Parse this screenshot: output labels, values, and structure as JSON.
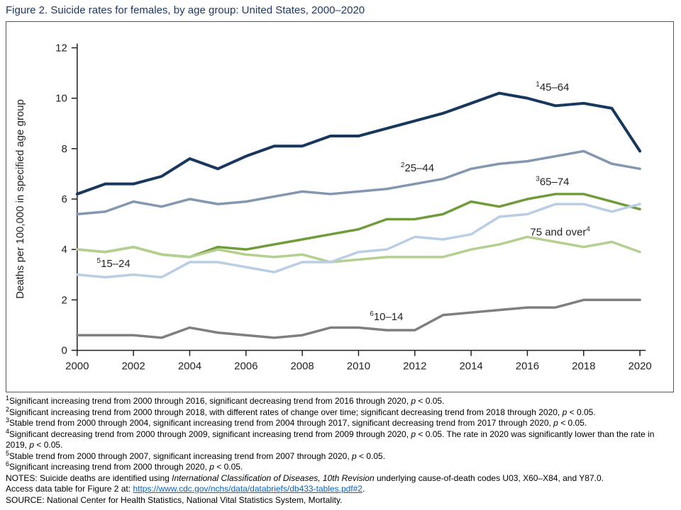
{
  "figure": {
    "title": "Figure 2. Suicide rates for females, by age group: United States, 2000–2020"
  },
  "chart_data": {
    "type": "line",
    "title": "Figure 2. Suicide rates for females, by age group: United States, 2000–2020",
    "xlabel": "",
    "ylabel": "Deaths per 100,000 in specified age group",
    "xlim": [
      2000,
      2020
    ],
    "ylim": [
      0,
      12
    ],
    "yticks": [
      0,
      2,
      4,
      6,
      8,
      10,
      12
    ],
    "xticks": [
      2000,
      2002,
      2004,
      2006,
      2008,
      2010,
      2012,
      2014,
      2016,
      2018,
      2020
    ],
    "grid": false,
    "legend_position": "inline-labels",
    "axis_color": "#231f20",
    "x": [
      2000,
      2001,
      2002,
      2003,
      2004,
      2005,
      2006,
      2007,
      2008,
      2009,
      2010,
      2011,
      2012,
      2013,
      2014,
      2015,
      2016,
      2017,
      2018,
      2019,
      2020
    ],
    "series": [
      {
        "id": "45-64",
        "name": "45–64",
        "footnote": "1",
        "color": "#17375e",
        "line_width": 4,
        "values": [
          6.2,
          6.6,
          6.6,
          6.9,
          7.6,
          7.2,
          7.7,
          8.1,
          8.1,
          8.5,
          8.5,
          8.8,
          9.1,
          9.4,
          9.8,
          10.2,
          10.0,
          9.7,
          9.8,
          9.6,
          7.9
        ],
        "label": {
          "text": "45–64",
          "sup": "1",
          "sup_side": "before",
          "x": 2016.3,
          "y": 10.3
        }
      },
      {
        "id": "25-44",
        "name": "25–44",
        "footnote": "2",
        "color": "#8497b0",
        "line_width": 3.5,
        "values": [
          5.4,
          5.5,
          5.9,
          5.7,
          6.0,
          5.8,
          5.9,
          6.1,
          6.3,
          6.2,
          6.3,
          6.4,
          6.6,
          6.8,
          7.2,
          7.4,
          7.5,
          7.7,
          7.9,
          7.4,
          7.2
        ],
        "label": {
          "text": "25–44",
          "sup": "2",
          "sup_side": "before",
          "x": 2011.5,
          "y": 7.1
        }
      },
      {
        "id": "65-74",
        "name": "65–74",
        "footnote": "3",
        "color": "#6f9c3a",
        "line_width": 3.5,
        "values": [
          4.0,
          3.9,
          4.1,
          3.8,
          3.7,
          4.1,
          4.0,
          4.2,
          4.4,
          4.6,
          4.8,
          5.2,
          5.2,
          5.4,
          5.9,
          5.7,
          6.0,
          6.2,
          6.2,
          5.9,
          5.6
        ],
        "label": {
          "text": "65–74",
          "sup": "3",
          "sup_side": "before",
          "x": 2016.3,
          "y": 6.55
        }
      },
      {
        "id": "75-over",
        "name": "75 and over",
        "footnote": "4",
        "color": "#b5cf8e",
        "line_width": 3.5,
        "values": [
          4.0,
          3.9,
          4.1,
          3.8,
          3.7,
          4.0,
          3.8,
          3.7,
          3.8,
          3.5,
          3.6,
          3.7,
          3.7,
          3.7,
          4.0,
          4.2,
          4.5,
          4.3,
          4.1,
          4.3,
          3.9
        ],
        "label": {
          "text": "75 and over",
          "sup": "4",
          "sup_side": "after",
          "x": 2016.1,
          "y": 4.55
        }
      },
      {
        "id": "15-24",
        "name": "15–24",
        "footnote": "5",
        "color": "#b9cde5",
        "line_width": 3.5,
        "values": [
          3.0,
          2.9,
          3.0,
          2.9,
          3.5,
          3.5,
          3.3,
          3.1,
          3.5,
          3.5,
          3.9,
          4.0,
          4.5,
          4.4,
          4.6,
          5.3,
          5.4,
          5.8,
          5.8,
          5.5,
          5.8
        ],
        "label": {
          "text": "15–24",
          "sup": "5",
          "sup_side": "before",
          "x": 2000.7,
          "y": 3.3
        }
      },
      {
        "id": "10-14",
        "name": "10–14",
        "footnote": "6",
        "color": "#7f7f7f",
        "line_width": 3.5,
        "values": [
          0.6,
          0.6,
          0.6,
          0.5,
          0.9,
          0.7,
          0.6,
          0.5,
          0.6,
          0.9,
          0.9,
          0.8,
          0.8,
          1.4,
          1.5,
          1.6,
          1.7,
          1.7,
          2.0,
          2.0,
          2.0
        ],
        "label": {
          "text": "10–14",
          "sup": "6",
          "sup_side": "before",
          "x": 2010.4,
          "y": 1.2
        }
      }
    ]
  },
  "footer": {
    "lines": [
      {
        "name": "footnote-1",
        "sup": "1",
        "segments": [
          {
            "text": "Significant increasing trend from 2000 through 2016, significant decreasing trend from 2016 through 2020, "
          },
          {
            "text": "p",
            "italic": true
          },
          {
            "text": " < 0.05."
          }
        ]
      },
      {
        "name": "footnote-2",
        "sup": "2",
        "segments": [
          {
            "text": "Significant increasing trend from 2000 through 2018, with different rates of change over time; significant decreasing trend from 2018 through 2020, "
          },
          {
            "text": "p",
            "italic": true
          },
          {
            "text": " < 0.05."
          }
        ]
      },
      {
        "name": "footnote-3",
        "sup": "3",
        "segments": [
          {
            "text": "Stable trend from 2000 through 2004, significant increasing trend from 2004 through 2017, significant decreasing trend from 2017 through 2020, "
          },
          {
            "text": "p",
            "italic": true
          },
          {
            "text": " < 0.05."
          }
        ]
      },
      {
        "name": "footnote-4",
        "sup": "4",
        "segments": [
          {
            "text": "Significant decreasing trend from 2000 through 2009, significant increasing trend from 2009 through 2020, "
          },
          {
            "text": "p",
            "italic": true
          },
          {
            "text": " < 0.05. The rate in 2020 was significantly lower than the rate in 2019, "
          },
          {
            "text": "p",
            "italic": true
          },
          {
            "text": " < 0.05."
          }
        ]
      },
      {
        "name": "footnote-5",
        "sup": "5",
        "segments": [
          {
            "text": "Stable trend from 2000 through 2007, significant increasing trend from 2007 through 2020, "
          },
          {
            "text": "p",
            "italic": true
          },
          {
            "text": " < 0.05."
          }
        ]
      },
      {
        "name": "footnote-6",
        "sup": "6",
        "segments": [
          {
            "text": "Significant increasing trend from 2000 through 2020, "
          },
          {
            "text": "p",
            "italic": true
          },
          {
            "text": " < 0.05."
          }
        ]
      },
      {
        "name": "notes-line",
        "segments": [
          {
            "text": "NOTES: Suicide deaths are identified using "
          },
          {
            "text": "International Classification of Diseases, 10th Revision",
            "italic": true
          },
          {
            "text": " underlying cause-of-death codes U03, X60–X84, and Y87.0."
          }
        ]
      },
      {
        "name": "access-data-line",
        "segments": [
          {
            "text": "Access data table for Figure 2 at: "
          },
          {
            "text": "https://www.cdc.gov/nchs/data/databriefs/db433-tables.pdf#2",
            "link": true
          },
          {
            "text": "."
          }
        ]
      },
      {
        "name": "source-line",
        "segments": [
          {
            "text": "SOURCE: National Center for Health Statistics, National Vital Statistics System, Mortality."
          }
        ]
      }
    ]
  }
}
